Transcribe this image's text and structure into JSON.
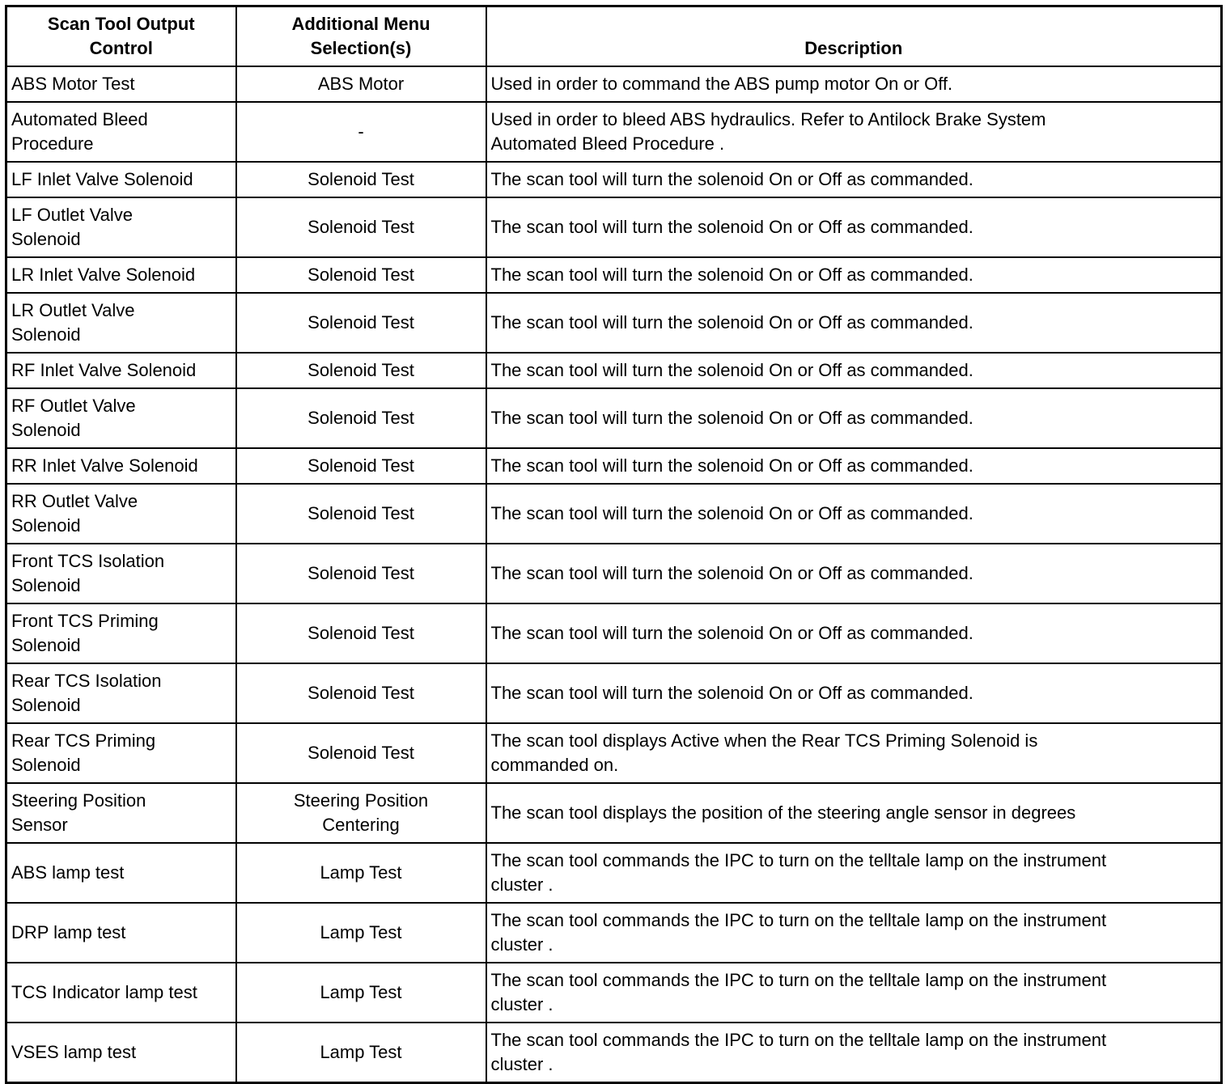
{
  "headers": {
    "control": [
      "Scan Tool Output",
      "Control"
    ],
    "menu": [
      "Additional Menu",
      "Selection(s)"
    ],
    "description": [
      "Description"
    ]
  },
  "rows": [
    {
      "control": [
        "ABS Motor Test"
      ],
      "menu": [
        "ABS Motor"
      ],
      "description": [
        "Used in order to command the ABS pump motor On or Off."
      ]
    },
    {
      "control": [
        "Automated Bleed",
        "Procedure"
      ],
      "menu": [
        "-"
      ],
      "description": [
        "Used in order to bleed ABS hydraulics. Refer to Antilock Brake System",
        "Automated Bleed Procedure ."
      ]
    },
    {
      "control": [
        "LF Inlet Valve Solenoid"
      ],
      "menu": [
        "Solenoid Test"
      ],
      "description": [
        "The scan tool will turn the solenoid On or Off as commanded."
      ]
    },
    {
      "control": [
        "LF Outlet Valve",
        "Solenoid"
      ],
      "menu": [
        "Solenoid Test"
      ],
      "description": [
        "The scan tool will turn the solenoid On or Off as commanded."
      ]
    },
    {
      "control": [
        "LR Inlet Valve Solenoid"
      ],
      "menu": [
        "Solenoid Test"
      ],
      "description": [
        "The scan tool will turn the solenoid On or Off as commanded."
      ]
    },
    {
      "control": [
        "LR Outlet Valve",
        "Solenoid"
      ],
      "menu": [
        "Solenoid Test"
      ],
      "description": [
        "The scan tool will turn the solenoid On or Off as commanded."
      ]
    },
    {
      "control": [
        "RF Inlet Valve Solenoid"
      ],
      "menu": [
        "Solenoid Test"
      ],
      "description": [
        "The scan tool will turn the solenoid On or Off as commanded."
      ]
    },
    {
      "control": [
        "RF Outlet Valve",
        "Solenoid"
      ],
      "menu": [
        "Solenoid Test"
      ],
      "description": [
        "The scan tool will turn the solenoid On or Off as commanded."
      ]
    },
    {
      "control": [
        "RR Inlet Valve Solenoid"
      ],
      "menu": [
        "Solenoid Test"
      ],
      "description": [
        "The scan tool will turn the solenoid On or Off as commanded."
      ]
    },
    {
      "control": [
        "RR Outlet Valve",
        "Solenoid"
      ],
      "menu": [
        "Solenoid Test"
      ],
      "description": [
        "The scan tool will turn the solenoid On or Off as commanded."
      ]
    },
    {
      "control": [
        "Front TCS Isolation",
        "Solenoid"
      ],
      "menu": [
        "Solenoid Test"
      ],
      "description": [
        "The scan tool will turn the solenoid On or Off as commanded."
      ]
    },
    {
      "control": [
        "Front TCS Priming",
        "Solenoid"
      ],
      "menu": [
        "Solenoid Test"
      ],
      "description": [
        "The scan tool will turn the solenoid On or Off as commanded."
      ]
    },
    {
      "control": [
        "Rear TCS Isolation",
        "Solenoid"
      ],
      "menu": [
        "Solenoid Test"
      ],
      "description": [
        "The scan tool will turn the solenoid On or Off as commanded."
      ]
    },
    {
      "control": [
        "Rear TCS Priming",
        "Solenoid"
      ],
      "menu": [
        "Solenoid Test"
      ],
      "description": [
        "The scan tool displays Active when the Rear TCS Priming Solenoid is",
        "commanded on."
      ]
    },
    {
      "control": [
        "Steering Position",
        "Sensor"
      ],
      "menu": [
        "Steering Position",
        "Centering"
      ],
      "description": [
        "The scan tool displays the position of the steering angle sensor in degrees"
      ]
    },
    {
      "control": [
        "ABS lamp test"
      ],
      "menu": [
        "Lamp Test"
      ],
      "description": [
        "The scan tool commands the IPC to turn on the telltale lamp on the instrument",
        "cluster ."
      ]
    },
    {
      "control": [
        "DRP lamp test"
      ],
      "menu": [
        "Lamp Test"
      ],
      "description": [
        "The scan tool commands the IPC to turn on the telltale lamp on the instrument",
        "cluster ."
      ]
    },
    {
      "control": [
        "TCS Indicator lamp test"
      ],
      "menu": [
        "Lamp Test"
      ],
      "description": [
        "The scan tool commands the IPC to turn on the telltale lamp on the instrument",
        "cluster ."
      ]
    },
    {
      "control": [
        "VSES lamp test"
      ],
      "menu": [
        "Lamp Test"
      ],
      "description": [
        "The scan tool commands the IPC to turn on the telltale lamp on the instrument",
        "cluster ."
      ]
    }
  ]
}
